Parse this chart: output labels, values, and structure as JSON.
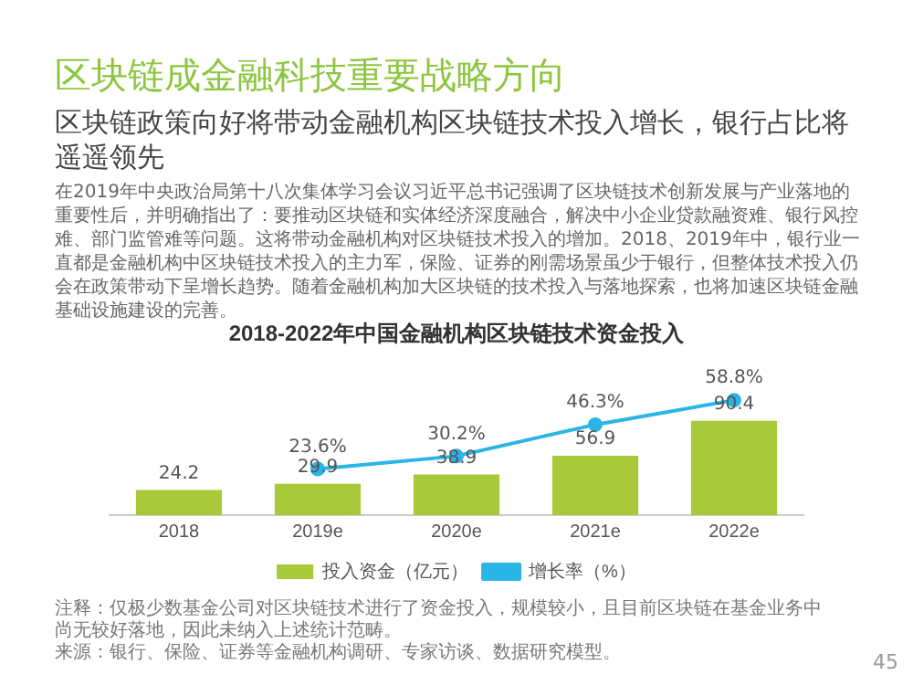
{
  "chart_data": {
    "type": "bar",
    "title": "2018-2022年中国金融机构区块链技术资金投入",
    "categories": [
      "2018",
      "2019e",
      "2020e",
      "2021e",
      "2022e"
    ],
    "series": [
      {
        "name": "投入资金（亿元）",
        "color": "#a8c93a",
        "values": [
          24.2,
          29.9,
          38.9,
          56.9,
          90.4
        ]
      },
      {
        "name": "增长率（%）",
        "type": "line",
        "axis": "y2",
        "color": "#2bb5e6",
        "values": [
          null,
          23.6,
          30.2,
          46.3,
          58.8
        ],
        "value_labels": [
          null,
          "23.6%",
          "30.2%",
          "46.3%",
          "58.8%"
        ]
      }
    ],
    "tick_labels": "x",
    "grid": false,
    "legend": "bottom",
    "marker": "circle",
    "data_labels": true,
    "annotations": [
      "区块链成金融科技重要战略方向",
      "区块链政策向好将带动金融机构区块链技术投入增长，银行占比将遥遥领先",
      "在2019年中央政治局第十八次集体学习会议习近平总书记强调了区块链技术创新发展与产业落地的重要性后，并明确指出了：要推动区块链和实体经济深度融合，解决中小企业贷款融资难、银行风控难、部门监管难等问题。这将带动金融机构对区块链技术投入的增加。2018、2019年中，银行业一直都是金融机构中区块链技术投入的主力军，保险、证券的刚需场景虽少于银行，但整体技术投入仍会在政策带动下呈增长趋势。随着金融机构加大区块链的技术投入与落地探索，也将加速区块链金融基础设施建设的完善。",
      "注释：仅极少数基金公司对区块链技术进行了资金投入，规模较小，且目前区块链在基金业务中尚无较好落地，因此未纳入上述统计范畴。",
      "来源：银行、保险、证券等金融机构调研、专家访谈、数据研究模型。",
      "45"
    ]
  }
}
